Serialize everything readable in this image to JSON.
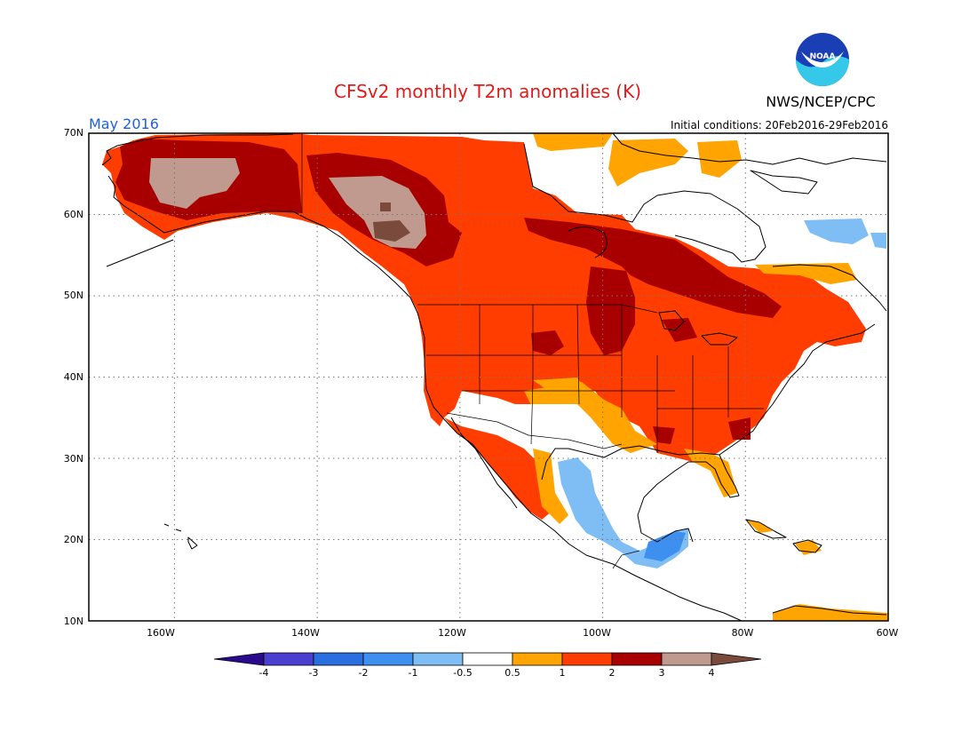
{
  "header": {
    "title": "CFSv2 monthly T2m anomalies (K)",
    "month_label": "May 2016",
    "organization": "NWS/NCEP/CPC",
    "logo_text": "NOAA",
    "initial_conditions": "Initial conditions: 20Feb2016-29Feb2016"
  },
  "map": {
    "lon_range": [
      -172,
      -60
    ],
    "lat_range": [
      10,
      70
    ],
    "lon_ticks": [
      "160W",
      "140W",
      "120W",
      "100W",
      "80W",
      "60W"
    ],
    "lat_ticks": [
      "10N",
      "20N",
      "30N",
      "40N",
      "50N",
      "60N",
      "70N"
    ],
    "projection": "cylindrical equidistant",
    "grid": "dotted"
  },
  "colorbar": {
    "tick_labels": [
      "-4",
      "-3",
      "-2",
      "-1",
      "-0.5",
      "0.5",
      "1",
      "2",
      "3",
      "4"
    ],
    "colors": [
      "#2a0a8c",
      "#4a3fcf",
      "#2a6fe0",
      "#3d8ff0",
      "#7fbdf5",
      "#ffffff",
      "#ffa400",
      "#ff3d00",
      "#a80000",
      "#c09a8e",
      "#7a4a3d"
    ]
  },
  "legend_colors": {
    "c_neg05": "#7fbdf5",
    "c_neg1": "#3d8ff0",
    "c_pos05": "#ffa400",
    "c_pos1": "#ff3d00",
    "c_pos2": "#a80000",
    "c_pos3": "#c09a8e",
    "c_pos4": "#7a4a3d"
  }
}
